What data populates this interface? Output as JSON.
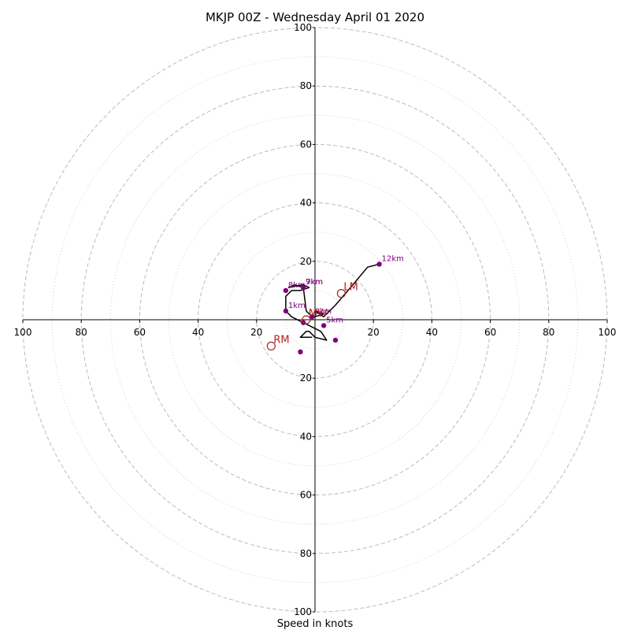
{
  "chart_data": {
    "type": "hodograph",
    "title": "MKJP 00Z - Wednesday April 01 2020",
    "xlabel": "Speed in knots",
    "unit": "knots",
    "max_speed": 100,
    "range": [
      -100,
      100
    ],
    "ring_values_dashed": [
      20,
      40,
      60,
      80,
      100
    ],
    "ring_values_dotted": [
      10,
      30,
      50,
      70,
      90
    ],
    "tick_labels": [
      "100",
      "80",
      "60",
      "40",
      "20",
      "20",
      "40",
      "60",
      "80",
      "100"
    ],
    "grid": true,
    "colors": {
      "trace": "#000000",
      "height_marker": "#800080",
      "motion_marker": "#b22222",
      "grid": "#bbbbbb"
    },
    "trace": [
      {
        "u": -1,
        "v": -6
      },
      {
        "u": -5,
        "v": -6
      },
      {
        "u": -3,
        "v": -4
      },
      {
        "u": -2,
        "v": -4
      },
      {
        "u": 0,
        "v": -6
      },
      {
        "u": 4,
        "v": -7
      },
      {
        "u": 2,
        "v": -4
      },
      {
        "u": -4,
        "v": -1
      },
      {
        "u": -8,
        "v": 1
      },
      {
        "u": -10,
        "v": 3
      },
      {
        "u": -10,
        "v": 8
      },
      {
        "u": -8,
        "v": 10
      },
      {
        "u": -5,
        "v": 10
      },
      {
        "u": -2,
        "v": 11
      },
      {
        "u": -4,
        "v": 12
      },
      {
        "u": -9,
        "v": 11
      },
      {
        "u": -7,
        "v": 12
      },
      {
        "u": -4,
        "v": 11
      },
      {
        "u": -3,
        "v": 3
      },
      {
        "u": -1,
        "v": 1
      },
      {
        "u": 0,
        "v": 1
      },
      {
        "u": 3,
        "v": 2
      },
      {
        "u": 0,
        "v": 3
      },
      {
        "u": 3,
        "v": 1
      },
      {
        "u": 7,
        "v": 5
      },
      {
        "u": 13,
        "v": 12
      },
      {
        "u": 18,
        "v": 18
      },
      {
        "u": 22,
        "v": 19
      }
    ],
    "height_points": [
      {
        "label": "",
        "u": -5,
        "v": -11
      },
      {
        "label": "1km",
        "u": -10,
        "v": 3
      },
      {
        "label": "",
        "u": -4,
        "v": -1
      },
      {
        "label": "",
        "u": 7,
        "v": -7
      },
      {
        "label": "5km",
        "u": 3,
        "v": -2
      },
      {
        "label": "6km",
        "u": -1,
        "v": 1
      },
      {
        "label": "7km",
        "u": -4,
        "v": 11
      },
      {
        "label": "8km",
        "u": -10,
        "v": 10
      },
      {
        "label": "9km",
        "u": -4,
        "v": 11
      },
      {
        "label": "12km",
        "u": 22,
        "v": 19
      }
    ],
    "storm_motions": [
      {
        "label": "RM",
        "u": -15,
        "v": -9
      },
      {
        "label": "LM",
        "u": 9,
        "v": 9
      },
      {
        "label": "MW",
        "u": -3,
        "v": 0
      }
    ]
  }
}
